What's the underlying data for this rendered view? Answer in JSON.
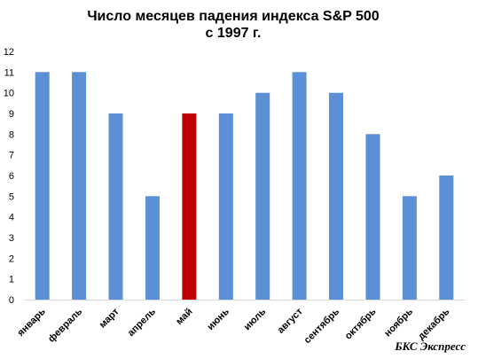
{
  "chart_data": {
    "type": "bar",
    "title_line1": "Число месяцев падения индекса S&P 500",
    "title_line2": "с 1997 г.",
    "categories": [
      "январь",
      "февраль",
      "март",
      "апрель",
      "май",
      "июнь",
      "июль",
      "август",
      "сентябрь",
      "октябрь",
      "ноябрь",
      "декабрь"
    ],
    "values": [
      11,
      11,
      9,
      5,
      9,
      9,
      10,
      11,
      10,
      8,
      5,
      6
    ],
    "highlight_index": 4,
    "ylim": [
      0,
      12
    ],
    "yticks": [
      0,
      1,
      2,
      3,
      4,
      5,
      6,
      7,
      8,
      9,
      10,
      11,
      12
    ],
    "grid": false,
    "legend": "none",
    "colors": {
      "bar": "#5B8FD6",
      "highlight": "#C00000"
    }
  },
  "watermark": "БКС Экспресс"
}
